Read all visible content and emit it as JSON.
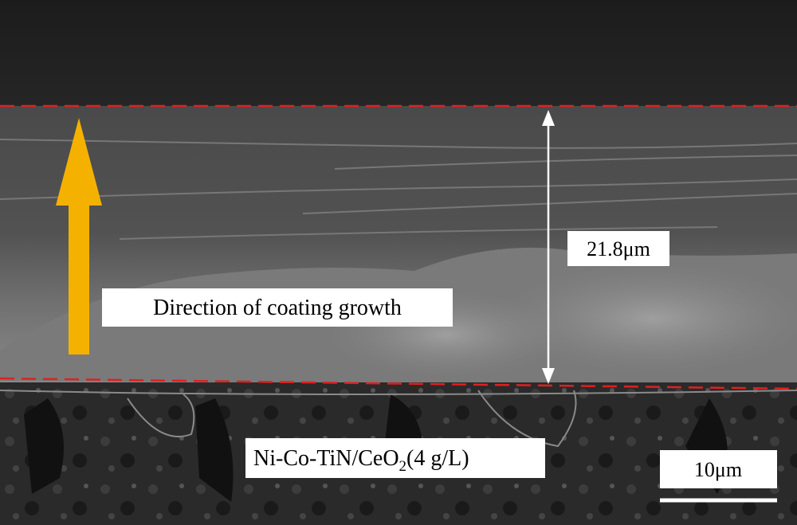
{
  "annotations": {
    "growth_direction": "Direction of coating growth",
    "thickness": "21.8μm",
    "sample": {
      "formula": "Ni-Co-TiN/CeO",
      "subscript": "2",
      "condition": "(4 g/L)"
    },
    "scale_bar": "10μm"
  }
}
